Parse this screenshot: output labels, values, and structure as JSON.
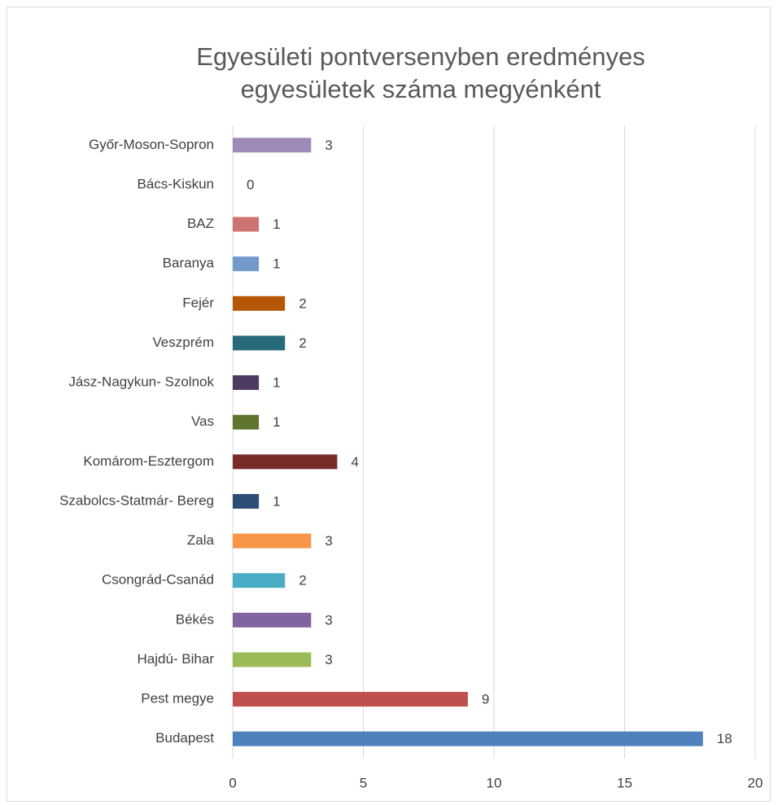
{
  "chart_data": {
    "type": "hbar",
    "title": [
      "Egyesületi pontversenyben eredményes",
      "egyesületek száma megyénként"
    ],
    "categories": [
      "Budapest",
      "Pest megye",
      "Hajdú- Bihar",
      "Békés",
      "Csongrád-Csanád",
      "Zala",
      "Szabolcs-Statmár- Bereg",
      "Komárom-Esztergom",
      "Vas",
      "Jász-Nagykun- Szolnok",
      "Veszprém",
      "Fejér",
      "Baranya",
      "BAZ",
      "Bács-Kiskun",
      "Győr-Moson-Sopron"
    ],
    "values": [
      18,
      9,
      3,
      3,
      2,
      3,
      1,
      4,
      1,
      1,
      2,
      2,
      1,
      1,
      0,
      3
    ],
    "colors": [
      "#4f81bd",
      "#c0504d",
      "#9bbb59",
      "#8064a2",
      "#4bacc6",
      "#f79646",
      "#2c4d75",
      "#772c2a",
      "#5f7530",
      "#4d3b62",
      "#276a7c",
      "#b65708",
      "#729aca",
      "#cd7371",
      "#afc97a",
      "#9d8ab7"
    ],
    "xlim": [
      0,
      20
    ],
    "xticks": [
      0,
      5,
      10,
      15,
      20
    ],
    "grid": true
  }
}
